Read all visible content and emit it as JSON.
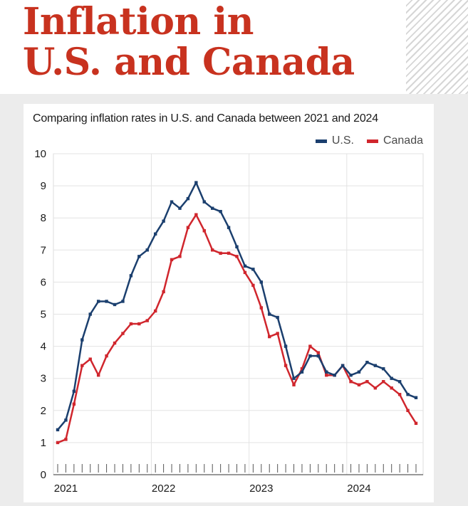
{
  "header": {
    "title_line1": "Inflation in",
    "title_line2": "U.S. and Canada"
  },
  "chart_data": {
    "type": "line",
    "title": "Comparing inflation rates in U.S. and Canada between 2021 and 2024",
    "ylim": [
      0,
      10
    ],
    "yticks": [
      "0",
      "1",
      "2",
      "3",
      "4",
      "5",
      "6",
      "7",
      "8",
      "9",
      "10"
    ],
    "xtick_labels": [
      "2021",
      "2022",
      "2023",
      "2024"
    ],
    "grid": true,
    "legend_position": "top-right",
    "series": [
      {
        "name": "U.S.",
        "color": "#1b3f6e",
        "values": [
          1.4,
          1.7,
          2.6,
          4.2,
          5.0,
          5.4,
          5.4,
          5.3,
          5.4,
          6.2,
          6.8,
          7.0,
          7.5,
          7.9,
          8.5,
          8.3,
          8.6,
          9.1,
          8.5,
          8.3,
          8.2,
          7.7,
          7.1,
          6.5,
          6.4,
          6.0,
          5.0,
          4.9,
          4.0,
          3.0,
          3.2,
          3.7,
          3.7,
          3.2,
          3.1,
          3.4,
          3.1,
          3.2,
          3.5,
          3.4,
          3.3,
          3.0,
          2.9,
          2.5,
          2.4
        ]
      },
      {
        "name": "Canada",
        "color": "#d0262d",
        "values": [
          1.0,
          1.1,
          2.2,
          3.4,
          3.6,
          3.1,
          3.7,
          4.1,
          4.4,
          4.7,
          4.7,
          4.8,
          5.1,
          5.7,
          6.7,
          6.8,
          7.7,
          8.1,
          7.6,
          7.0,
          6.9,
          6.9,
          6.8,
          6.3,
          5.9,
          5.2,
          4.3,
          4.4,
          3.4,
          2.8,
          3.3,
          4.0,
          3.8,
          3.1,
          3.1,
          3.4,
          2.9,
          2.8,
          2.9,
          2.7,
          2.9,
          2.7,
          2.5,
          2.0,
          1.6
        ]
      }
    ]
  }
}
